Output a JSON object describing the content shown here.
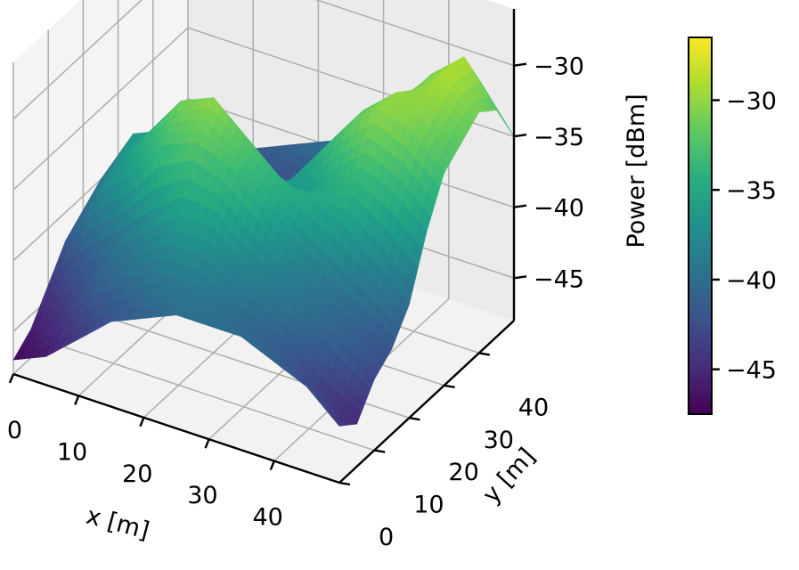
{
  "chart_data": {
    "type": "surface",
    "title": "",
    "xlabel": "x [m]",
    "ylabel": "y [m]",
    "zlabel": "Power [dBm]",
    "colormap": "viridis",
    "x_ticks": [
      0,
      10,
      20,
      30,
      40
    ],
    "y_ticks": [
      0,
      10,
      20,
      30,
      40
    ],
    "z_ticks": [
      -45,
      -40,
      -35,
      -30
    ],
    "x_tick_labels": [
      "0",
      "10",
      "20",
      "30",
      "40"
    ],
    "y_tick_labels": [
      "0",
      "10",
      "20",
      "30",
      "40"
    ],
    "z_tick_labels": [
      "−45",
      "−40",
      "−35",
      "−30"
    ],
    "xlim": [
      0,
      50
    ],
    "ylim": [
      0,
      50
    ],
    "zlim": [
      -48,
      -26
    ],
    "grid": true,
    "colorbar": {
      "range": [
        -47.5,
        -26.5
      ],
      "ticks": [
        -45,
        -40,
        -35,
        -30
      ],
      "tick_labels": [
        "−45",
        "−40",
        "−35",
        "−30"
      ]
    },
    "x": [
      0,
      5,
      10,
      15,
      20,
      25,
      30,
      35,
      40,
      45,
      50
    ],
    "y": [
      0,
      5,
      10,
      15,
      20,
      25,
      30,
      35,
      40,
      45,
      50
    ],
    "z": [
      [
        -47,
        -46,
        -44,
        -42,
        -41,
        -40,
        -40,
        -40,
        -41,
        -42,
        -44
      ],
      [
        -46,
        -44,
        -41,
        -40,
        -39,
        -39,
        -40,
        -41,
        -42,
        -44,
        -45
      ],
      [
        -44,
        -42,
        -40,
        -38,
        -36,
        -36,
        -38,
        -39,
        -40,
        -41,
        -43
      ],
      [
        -42,
        -38,
        -36,
        -33,
        -32,
        -33,
        -35,
        -38,
        -40,
        -41,
        -42
      ],
      [
        -41,
        -37,
        -34,
        -31,
        -30,
        -32,
        -34,
        -35,
        -36,
        -38,
        -40
      ],
      [
        -40,
        -36,
        -35,
        -34,
        -34,
        -36,
        -37,
        -35,
        -33,
        -34,
        -36
      ],
      [
        -40,
        -38,
        -37,
        -36,
        -37,
        -38,
        -35,
        -32,
        -30,
        -31,
        -33
      ],
      [
        -41,
        -40,
        -40,
        -43,
        -45,
        -42,
        -37,
        -32,
        -30,
        -30,
        -32
      ],
      [
        -42,
        -41,
        -40,
        -44,
        -46,
        -43,
        -38,
        -33,
        -31,
        -29,
        -31
      ],
      [
        -43,
        -42,
        -41,
        -42,
        -43,
        -41,
        -38,
        -34,
        -31,
        -29,
        -32
      ],
      [
        -44,
        -43,
        -42,
        -41,
        -40,
        -39,
        -37,
        -35,
        -33,
        -32,
        -35
      ]
    ]
  }
}
